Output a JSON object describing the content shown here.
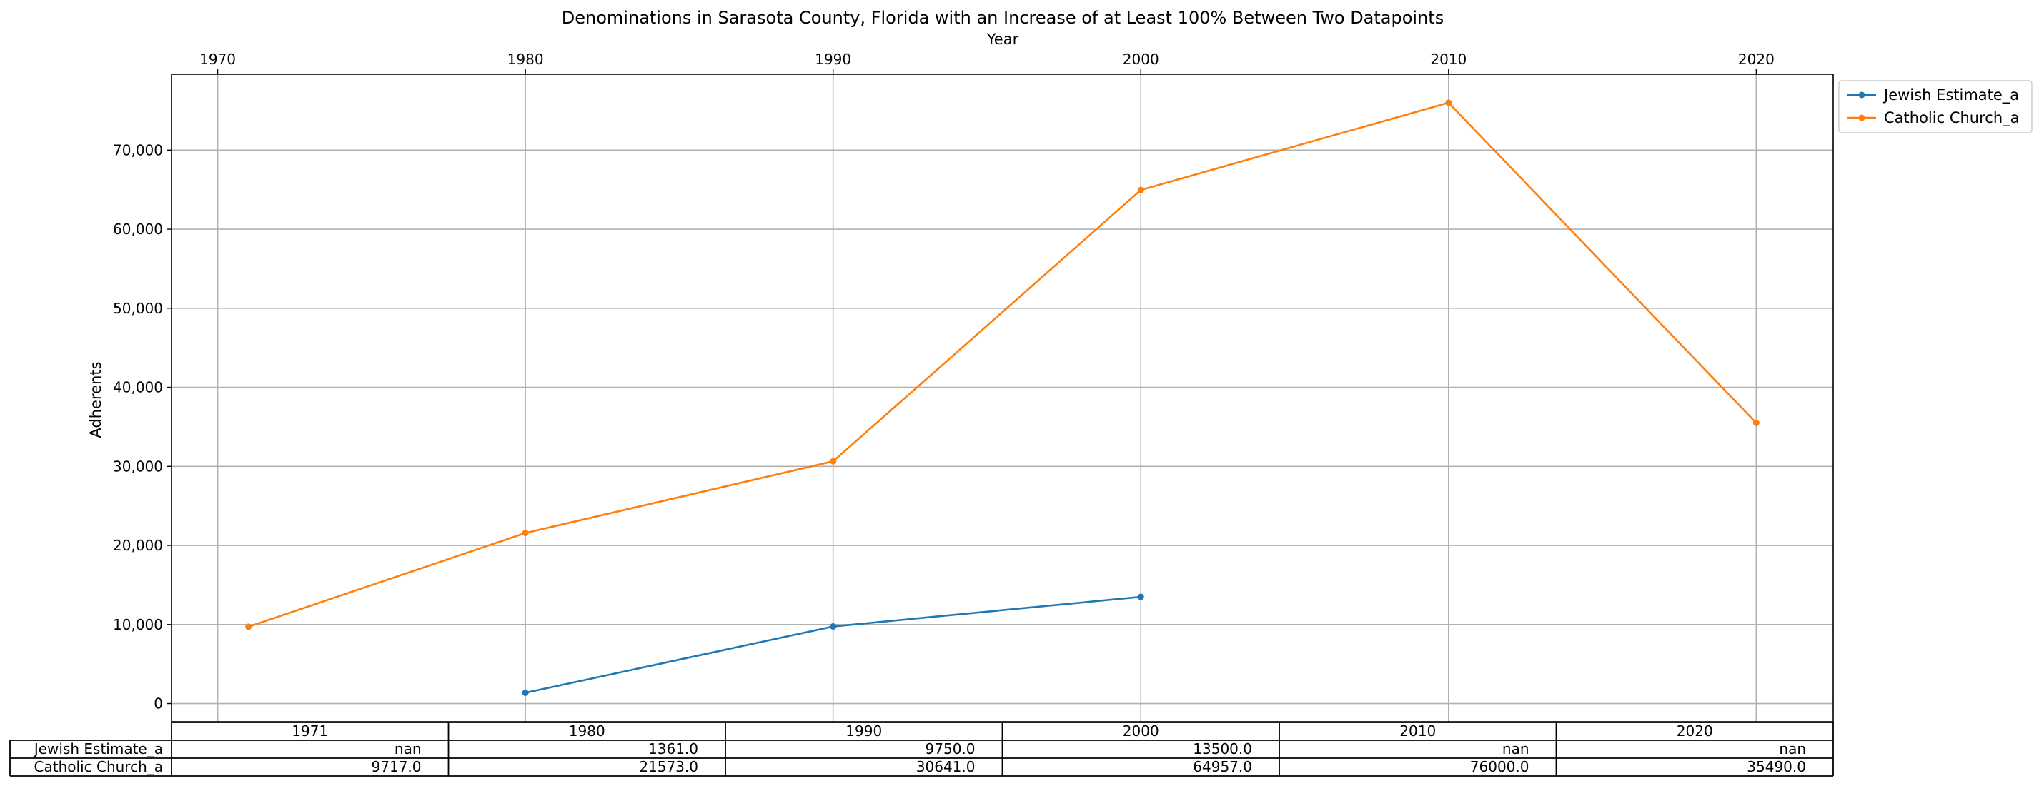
{
  "chart_data": {
    "type": "line",
    "title": "Denominations in Sarasota County, Florida with an Increase of at Least 100% Between Two Datapoints",
    "xlabel": "Year",
    "ylabel": "Adherents",
    "x_ticks": [
      "1970",
      "1980",
      "1990",
      "2000",
      "2010",
      "2020"
    ],
    "y_ticks": [
      "0",
      "10,000",
      "20,000",
      "30,000",
      "40,000",
      "50,000",
      "60,000",
      "70,000"
    ],
    "xlim": [
      1968.5,
      2022.5
    ],
    "ylim": [
      -2300,
      79600
    ],
    "grid": true,
    "legend_position": "outside-top-right",
    "series": [
      {
        "name": "Jewish Estimate_a",
        "color": "#1f77b4",
        "x": [
          1971,
          1980,
          1990,
          2000,
          2010,
          2020
        ],
        "values": [
          null,
          1361,
          9750,
          13500,
          null,
          null
        ]
      },
      {
        "name": "Catholic Church_a",
        "color": "#ff7f0e",
        "x": [
          1971,
          1980,
          1990,
          2000,
          2010,
          2020
        ],
        "values": [
          9717,
          21573,
          30641,
          64957,
          76000,
          35490
        ]
      }
    ],
    "table": {
      "columns": [
        "1971",
        "1980",
        "1990",
        "2000",
        "2010",
        "2020"
      ],
      "rows": [
        {
          "label": "Jewish Estimate_a",
          "cells": [
            "nan",
            "1361.0",
            "9750.0",
            "13500.0",
            "nan",
            "nan"
          ]
        },
        {
          "label": "Catholic Church_a",
          "cells": [
            "9717.0",
            "21573.0",
            "30641.0",
            "64957.0",
            "76000.0",
            "35490.0"
          ]
        }
      ]
    }
  }
}
